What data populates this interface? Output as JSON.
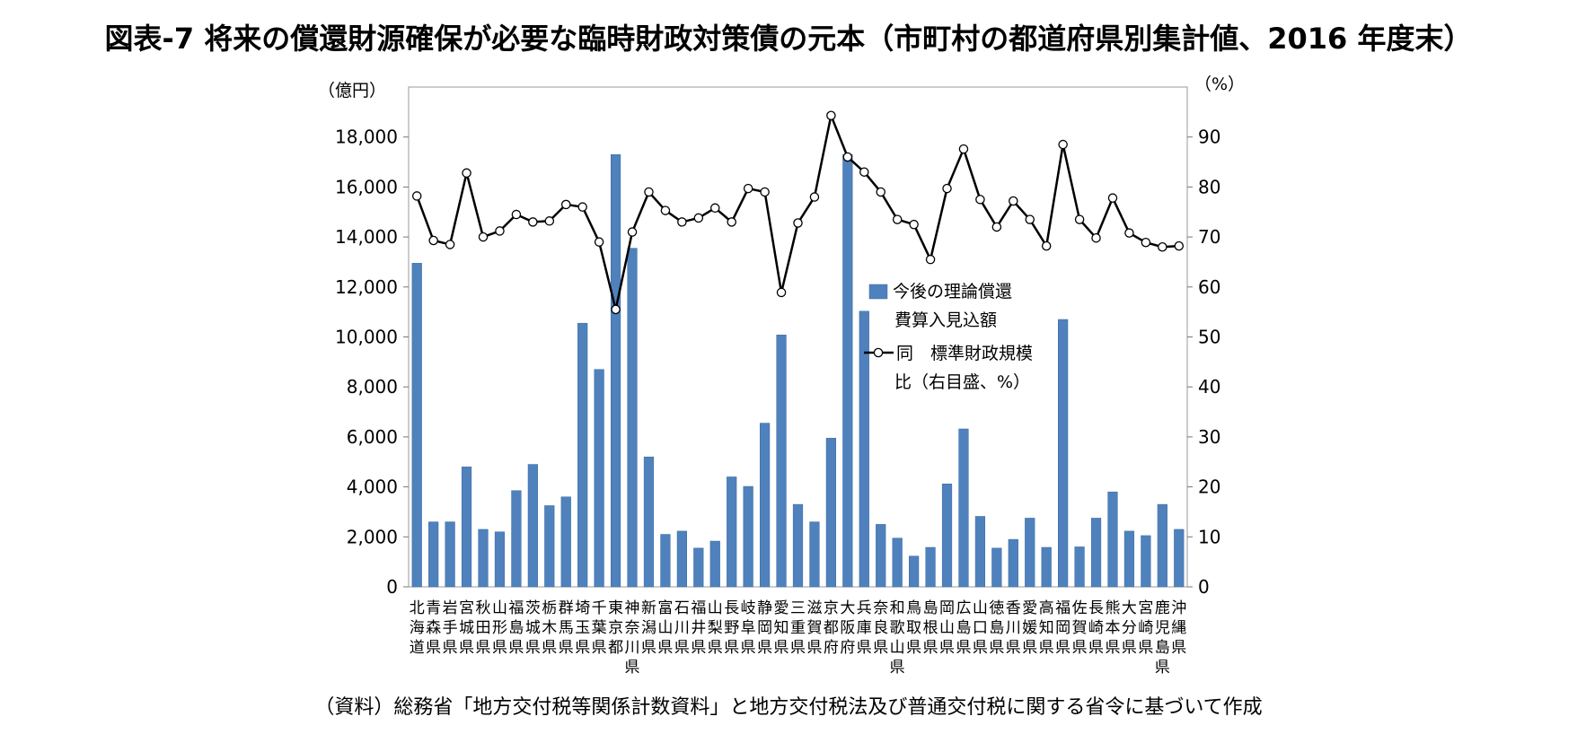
{
  "chart_data": {
    "type": "bar+line",
    "title": "図表-7 将来の償還財源確保が必要な臨時財政対策債の元本（市町村の都道府県別集計値、2016 年度末）",
    "source_note": "（資料）総務省「地方交付税等関係計数資料」と地方交付税法及び普通交付税に関する省令に基づいて作成",
    "y_left_unit": "（億円）",
    "y_right_unit": "（%）",
    "y_left_ticks": [
      "0",
      "2,000",
      "4,000",
      "6,000",
      "8,000",
      "10,000",
      "12,000",
      "14,000",
      "16,000",
      "18,000"
    ],
    "y_right_ticks": [
      "0",
      "10",
      "20",
      "30",
      "40",
      "50",
      "60",
      "70",
      "80",
      "90"
    ],
    "ylim_left": [
      0,
      20000
    ],
    "ylim_right": [
      0,
      100
    ],
    "grid": false,
    "legend_placement": "center-right",
    "categories": [
      "北海道",
      "青森県",
      "岩手県",
      "宮城県",
      "秋田県",
      "山形県",
      "福島県",
      "茨城県",
      "栃木県",
      "群馬県",
      "埼玉県",
      "千葉県",
      "東京都",
      "神奈川県",
      "新潟県",
      "富山県",
      "石川県",
      "福井県",
      "山梨県",
      "長野県",
      "岐阜県",
      "静岡県",
      "愛知県",
      "三重県",
      "滋賀県",
      "京都府",
      "大阪府",
      "兵庫県",
      "奈良県",
      "和歌山県",
      "鳥取県",
      "島根県",
      "岡山県",
      "広島県",
      "山口県",
      "徳島県",
      "香川県",
      "愛媛県",
      "高知県",
      "福岡県",
      "佐賀県",
      "長崎県",
      "熊本県",
      "大分県",
      "宮崎県",
      "鹿児島県",
      "沖縄県"
    ],
    "series": [
      {
        "name": "今後の理論償還費算入見込額",
        "legend_lines": [
          "今後の理論償還",
          "費算入見込額"
        ],
        "type": "bar",
        "axis": "left",
        "color": "#4f81bd",
        "values": [
          12950,
          2600,
          2600,
          4800,
          2300,
          2200,
          3850,
          4900,
          3250,
          3600,
          10550,
          8700,
          17300,
          13550,
          5200,
          2100,
          2230,
          1550,
          1830,
          4400,
          4020,
          6550,
          10080,
          3300,
          2600,
          5950,
          17300,
          11030,
          2500,
          1950,
          1230,
          1580,
          4120,
          6320,
          2820,
          1550,
          1900,
          2750,
          1580,
          10700,
          1600,
          2750,
          3800,
          2230,
          2050,
          3300,
          2300
        ]
      },
      {
        "name": "同 標準財政規模比（右目盛、%）",
        "legend_lines": [
          "同　標準財政規模",
          "比（右目盛、%）"
        ],
        "type": "line",
        "axis": "right",
        "color": "#000000",
        "values": [
          78.2,
          69.3,
          68.5,
          82.8,
          70.0,
          71.2,
          74.5,
          73.0,
          73.2,
          76.5,
          76.0,
          69.0,
          55.5,
          71.0,
          79.0,
          75.3,
          73.0,
          73.8,
          75.8,
          73.0,
          79.7,
          79.0,
          58.9,
          72.8,
          78.0,
          94.3,
          86.0,
          83.0,
          79.0,
          73.5,
          72.5,
          65.5,
          79.7,
          87.6,
          77.5,
          72.0,
          77.2,
          73.5,
          68.2,
          88.5,
          73.5,
          69.8,
          77.8,
          70.8,
          68.9,
          68.0,
          68.2
        ]
      }
    ]
  }
}
